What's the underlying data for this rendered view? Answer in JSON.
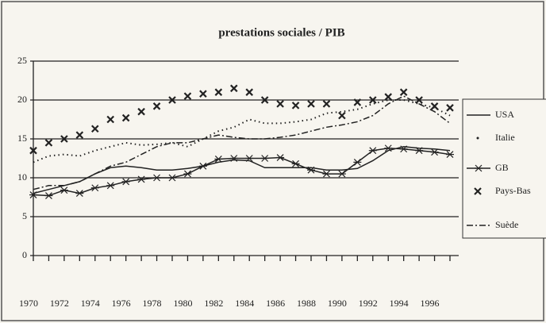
{
  "chart_data": {
    "type": "line",
    "title": "prestations sociales / PIB",
    "categories": [
      1970,
      null,
      1972,
      null,
      1974,
      null,
      1976,
      null,
      1978,
      null,
      1980,
      null,
      1982,
      null,
      1984,
      null,
      1986,
      null,
      1988,
      null,
      1990,
      null,
      1992,
      null,
      1994,
      null,
      1996,
      null
    ],
    "ylim": [
      0,
      25
    ],
    "yticks": [
      0,
      5,
      10,
      15,
      20,
      25
    ],
    "grid": true,
    "legend": "right",
    "series": [
      {
        "name": "USA",
        "color": "#222222",
        "style": "solid",
        "values": [
          8,
          8.5,
          9,
          9.5,
          10.5,
          11.3,
          11.5,
          11.3,
          11,
          11,
          11.2,
          11.5,
          12,
          12.3,
          12.2,
          11.3,
          11.3,
          11.3,
          11.3,
          11,
          11,
          11.2,
          12.2,
          13.5,
          14,
          13.8,
          13.7,
          13.5
        ]
      },
      {
        "name": "Italie",
        "color": "#222222",
        "style": "dotted",
        "values": [
          12,
          12.8,
          13,
          12.8,
          13.5,
          14,
          14.5,
          14.2,
          14.3,
          14.5,
          14,
          15,
          16,
          16.5,
          17.5,
          17,
          17,
          17.2,
          17.5,
          18.3,
          18.5,
          18.8,
          19.5,
          20,
          20,
          19.5,
          19,
          18
        ]
      },
      {
        "name": "GB",
        "color": "#222222",
        "style": "solid-asterisk",
        "values": [
          7.8,
          7.7,
          8.4,
          8,
          8.7,
          9,
          9.5,
          9.8,
          10,
          10,
          10.5,
          11.5,
          12.4,
          12.5,
          12.5,
          12.5,
          12.6,
          11.8,
          11,
          10.5,
          10.5,
          12,
          13.5,
          13.8,
          13.7,
          13.5,
          13.3,
          13
        ]
      },
      {
        "name": "Pays-Bas",
        "color": "#222222",
        "style": "cross",
        "values": [
          13.5,
          14.5,
          15,
          15.5,
          16.3,
          17.5,
          17.7,
          18.5,
          19.2,
          20,
          20.5,
          20.8,
          21,
          21.5,
          21,
          20,
          19.5,
          19.3,
          19.5,
          19.5,
          18,
          19.7,
          20,
          20.4,
          21,
          20,
          19.2,
          19
        ]
      },
      {
        "name": "Suède",
        "color": "#222222",
        "style": "dashdot",
        "values": [
          8.5,
          9,
          9,
          9.5,
          10.5,
          11.5,
          12,
          13,
          14,
          14.5,
          14.5,
          15,
          15.5,
          15.2,
          15,
          15,
          15.2,
          15.5,
          16,
          16.5,
          16.8,
          17.2,
          18,
          19.5,
          20.5,
          19.5,
          18.5,
          17
        ]
      }
    ]
  }
}
